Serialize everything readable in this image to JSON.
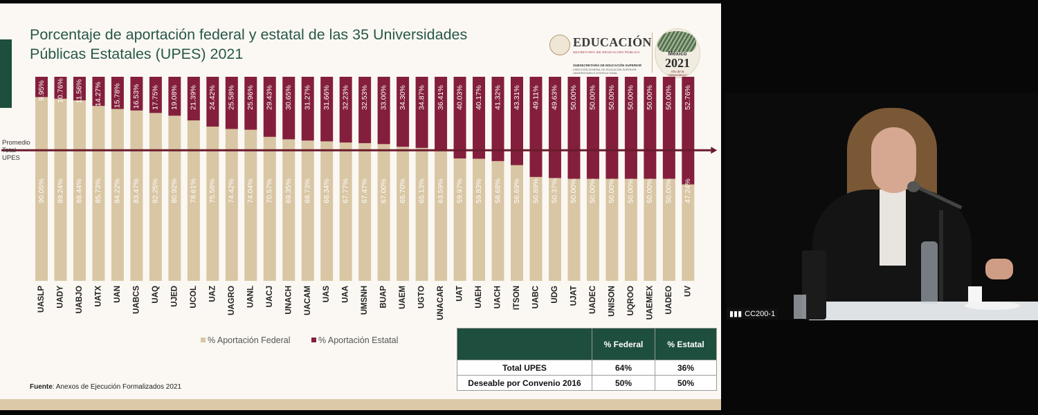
{
  "slide": {
    "title_line1": "Porcentaje de aportación federal y estatal de las 35 Universidades",
    "title_line2": "Públicas Estatales (UPES) 2021",
    "logo": {
      "word": "EDUCACIÓN",
      "sub1": "SECRETARÍA DE EDUCACIÓN PÚBLICA",
      "sub2": "SUBSECRETARÍA DE EDUCACIÓN SUPERIOR",
      "sub3": "DIRECCIÓN GENERAL DE EDUCACIÓN SUPERIOR UNIVERSITARIA E INTERCULTURAL",
      "badge_country": "México",
      "badge_year": "2021",
      "badge_tag": "Año de la Independencia"
    },
    "source_label": "Fuente",
    "source_text": ": Anexos de Ejecución Formalizados 2021",
    "colors": {
      "federal": "#d9c6a4",
      "estatal": "#831f3c",
      "title": "#285748",
      "table_header": "#1e4e3e"
    }
  },
  "chart_data": {
    "type": "bar",
    "stacked": true,
    "orientation": "vertical",
    "ylim": [
      0,
      100
    ],
    "categories": [
      "UASLP",
      "UADY",
      "UABJO",
      "UATX",
      "UAN",
      "UABCS",
      "UAQ",
      "UJED",
      "UCOL",
      "UAZ",
      "UAGRO",
      "UANL",
      "UACJ",
      "UNACH",
      "UACAM",
      "UAS",
      "UAA",
      "UMSNH",
      "BUAP",
      "UAEM",
      "UGTO",
      "UNACAR",
      "UAT",
      "UAEH",
      "UACH",
      "ITSON",
      "UABC",
      "UDG",
      "UJAT",
      "UADEC",
      "UNISON",
      "UQROO",
      "UAEMEX",
      "UADEO",
      "UV"
    ],
    "series": [
      {
        "name": "% Aportación Federal",
        "values": [
          90.05,
          89.24,
          88.44,
          85.73,
          84.22,
          83.47,
          82.25,
          80.92,
          78.61,
          75.58,
          74.42,
          74.04,
          70.57,
          69.35,
          68.73,
          68.34,
          67.77,
          67.47,
          67.0,
          65.7,
          65.13,
          63.59,
          59.97,
          59.83,
          58.68,
          56.69,
          50.89,
          50.37,
          50.0,
          50.0,
          50.0,
          50.0,
          50.0,
          50.0,
          47.24
        ],
        "labels": [
          "90.05%",
          "89.24%",
          "88.44%",
          "85.73%",
          "84.22%",
          "83.47%",
          "82.25%",
          "80.92%",
          "78.61%",
          "75.58%",
          "74.42%",
          "74.04%",
          "70.57%",
          "69.35%",
          "68.73%",
          "68.34%",
          "67.77%",
          "67.47%",
          "67.00%",
          "65.70%",
          "65.13%",
          "63.59%",
          "59.97%",
          "59.83%",
          "58.68%",
          "56.69%",
          "50.89%",
          "50.37%",
          "50.00%",
          "50.00%",
          "50.00%",
          "50.00%",
          "50.00%",
          "50.00%",
          "47.24%"
        ]
      },
      {
        "name": "% Aportación Estatal",
        "values": [
          9.95,
          10.76,
          11.56,
          14.27,
          15.78,
          16.53,
          17.75,
          19.08,
          21.39,
          24.42,
          25.58,
          25.96,
          29.43,
          30.65,
          31.27,
          31.66,
          32.23,
          32.53,
          33.0,
          34.3,
          34.87,
          36.41,
          40.03,
          40.17,
          41.32,
          43.31,
          49.11,
          49.63,
          50.0,
          50.0,
          50.0,
          50.0,
          50.0,
          50.0,
          52.76
        ],
        "labels": [
          "9.95%",
          "10.76%",
          "11.56%",
          "14.27%",
          "15.78%",
          "16.53%",
          "17.75%",
          "19.08%",
          "21.39%",
          "24.42%",
          "25.58%",
          "25.96%",
          "29.43%",
          "30.65%",
          "31.27%",
          "31.66%",
          "32.23%",
          "32.53%",
          "33.00%",
          "34.30%",
          "34.87%",
          "36.41%",
          "40.03%",
          "40.17%",
          "41.32%",
          "43.31%",
          "49.11%",
          "49.63%",
          "50.00%",
          "50.00%",
          "50.00%",
          "50.00%",
          "50.00%",
          "50.00%",
          "52.76%"
        ]
      }
    ],
    "reference_line": {
      "label_lines": [
        "Promedio",
        "Total",
        "UPES"
      ],
      "value": 64
    },
    "legend_position": "bottom",
    "grid": false
  },
  "summary_table": {
    "headers": [
      "",
      "% Federal",
      "% Estatal"
    ],
    "rows": [
      [
        "Total UPES",
        "64%",
        "36%"
      ],
      [
        "Deseable por Convenio 2016",
        "50%",
        "50%"
      ]
    ]
  },
  "video": {
    "participant_label": "CC200-1"
  }
}
